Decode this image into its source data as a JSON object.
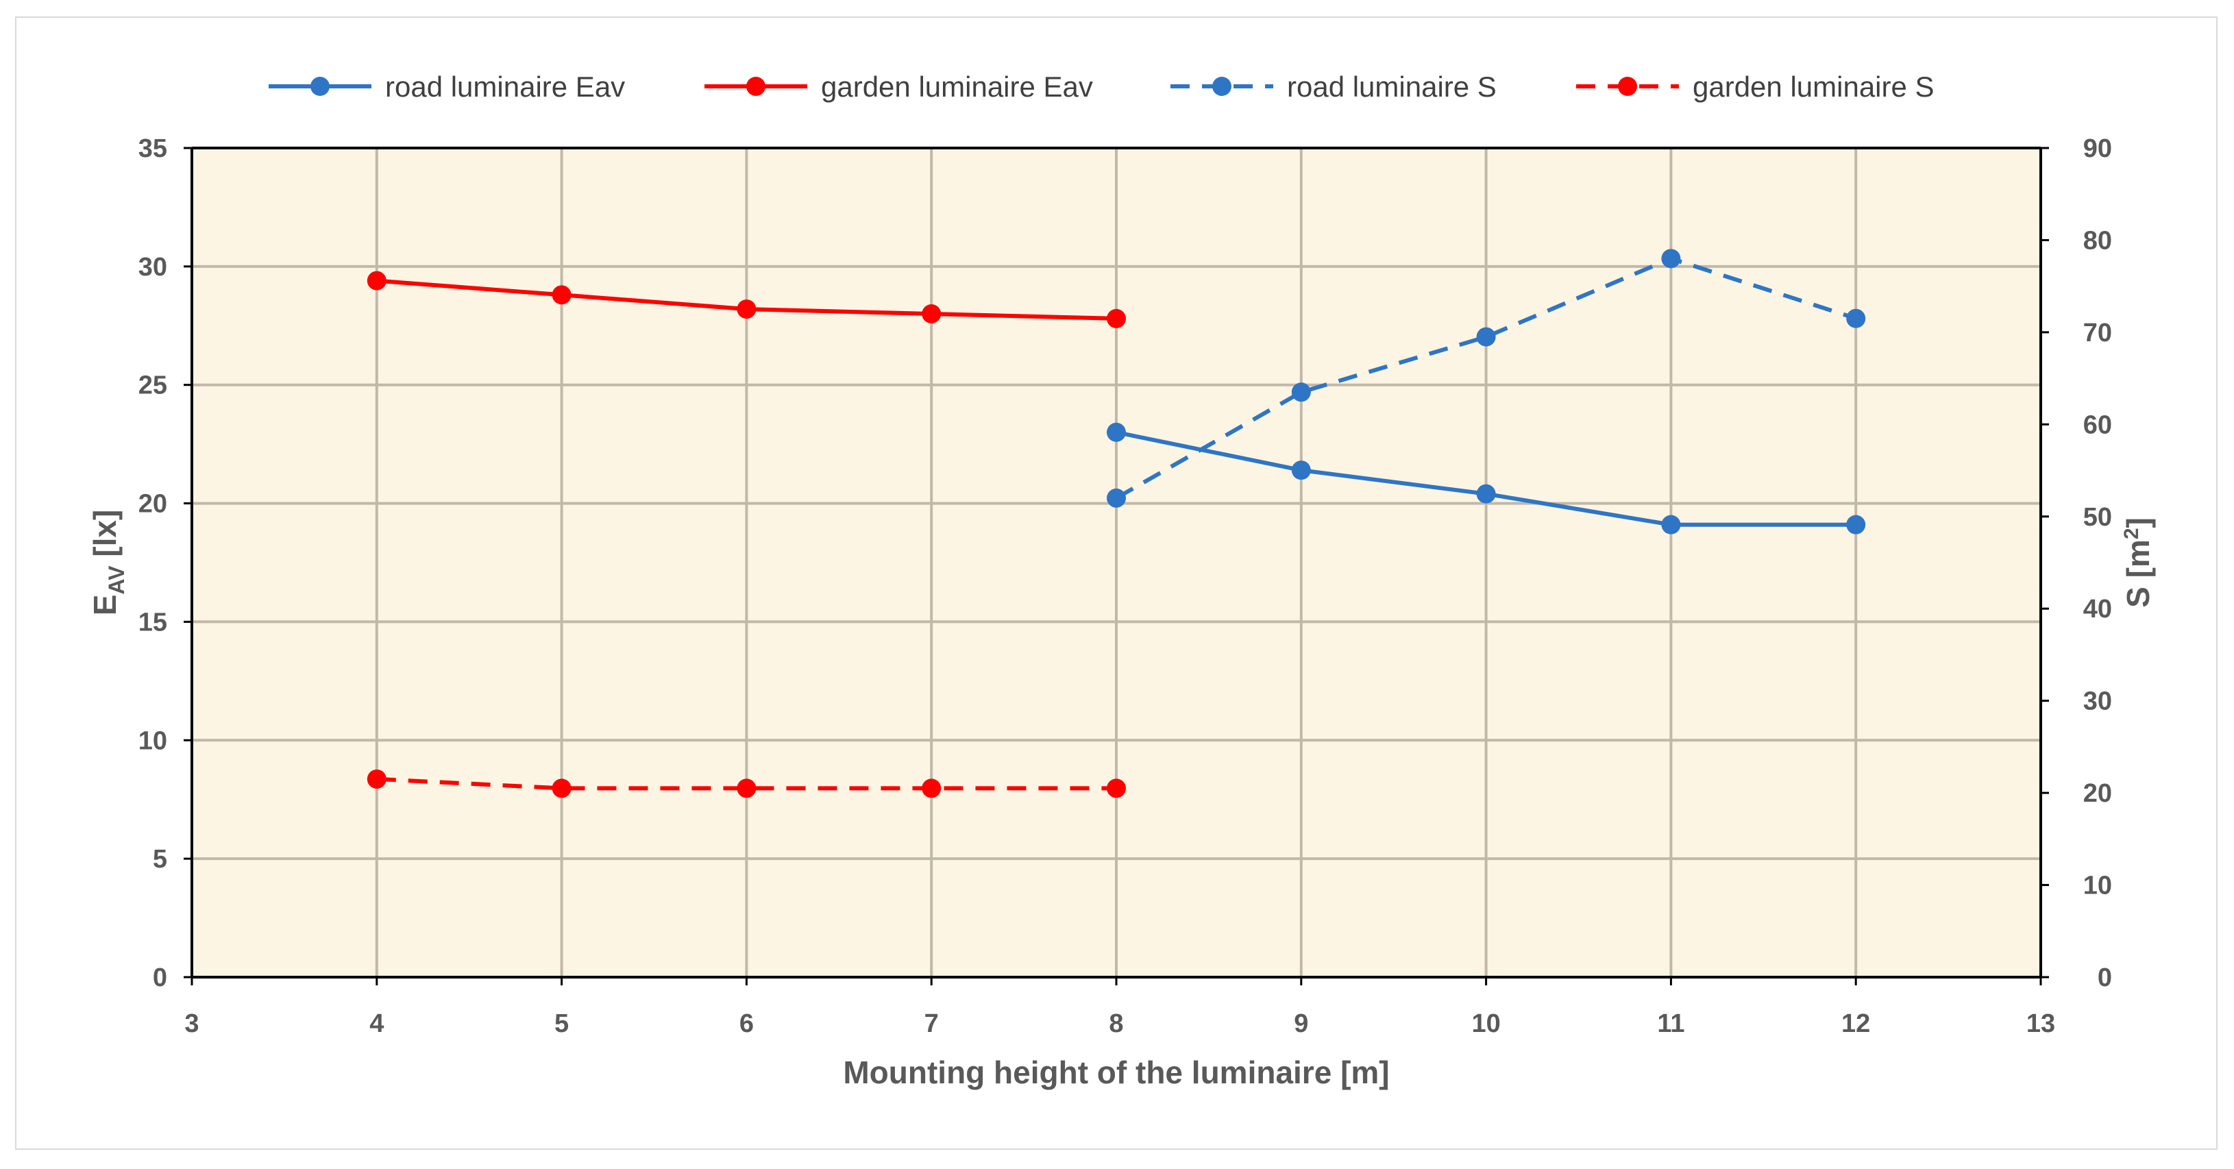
{
  "chart_data": {
    "type": "line",
    "title": "",
    "xlabel": "Mounting height of the luminaire [m]",
    "ylabel": {
      "main": "E",
      "sub": "AV",
      "unit": " [lx]"
    },
    "y2label": {
      "main": "S [m",
      "sup": "2",
      "end": "]"
    },
    "xlim": [
      3,
      13
    ],
    "ylim": [
      0,
      35
    ],
    "y2lim": [
      0,
      90
    ],
    "xticks": [
      3,
      4,
      5,
      6,
      7,
      8,
      9,
      10,
      11,
      12,
      13
    ],
    "yticks": [
      0,
      5,
      10,
      15,
      20,
      25,
      30,
      35
    ],
    "y2ticks": [
      0,
      10,
      20,
      30,
      40,
      50,
      60,
      70,
      80,
      90
    ],
    "grid": true,
    "legend_position": "top",
    "plot_background": "#fdf5e3",
    "series": [
      {
        "name": "road luminaire Eav",
        "axis": "left",
        "style": "solid",
        "color": "#2e75c6",
        "x": [
          8,
          9,
          10,
          11,
          12
        ],
        "y": [
          23.0,
          21.4,
          20.4,
          19.1,
          19.1
        ]
      },
      {
        "name": "garden luminaire Eav",
        "axis": "left",
        "style": "solid",
        "color": "#ff0000",
        "x": [
          4,
          5,
          6,
          7,
          8
        ],
        "y": [
          29.4,
          28.8,
          28.2,
          28.0,
          27.8
        ]
      },
      {
        "name": "road luminaire S",
        "axis": "right",
        "style": "dashed",
        "color": "#2e75c6",
        "x": [
          8,
          9,
          10,
          11,
          12
        ],
        "y": [
          52.0,
          63.5,
          69.5,
          78.0,
          71.5
        ]
      },
      {
        "name": "garden luminaire S",
        "axis": "right",
        "style": "dashed",
        "color": "#ff0000",
        "x": [
          4,
          5,
          6,
          7,
          8
        ],
        "y": [
          21.5,
          20.5,
          20.5,
          20.5,
          20.5
        ]
      }
    ]
  }
}
